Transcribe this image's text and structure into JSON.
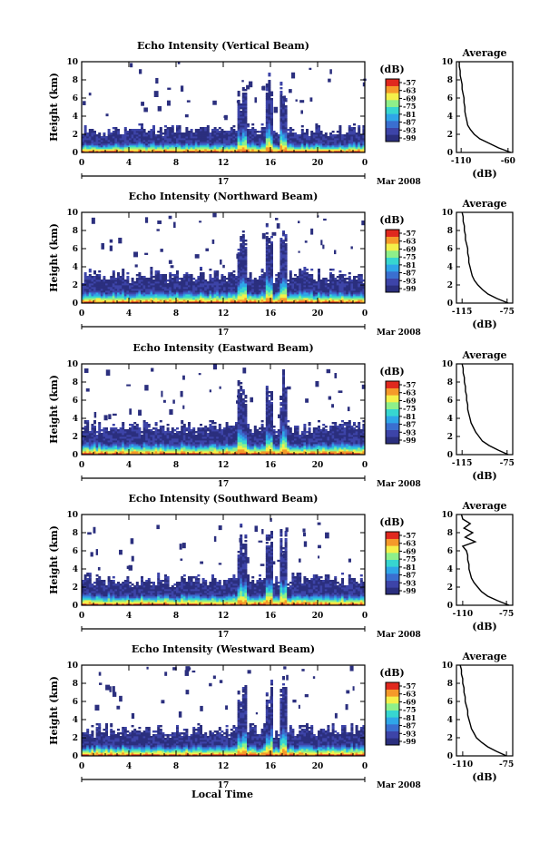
{
  "figure": {
    "xlabel": "Local Time",
    "date_day": "17",
    "date_month": "Mar 2008",
    "colorbar_unit": "(dB)",
    "colorbar_ticks": [
      "-57",
      "-63",
      "-69",
      "-75",
      "-81",
      "-87",
      "-93",
      "-99"
    ],
    "colorbar_colors": [
      "#2b2f7e",
      "#3d44a8",
      "#3a6fd0",
      "#2fa6e8",
      "#37d6d0",
      "#8ef08a",
      "#f4f04a",
      "#f59a2a",
      "#e0281e"
    ]
  },
  "chart_data": [
    {
      "type": "heatmap",
      "title": "Echo Intensity (Vertical Beam)",
      "ylabel": "Height (km)",
      "xlim": [
        0,
        24
      ],
      "ylim": [
        0,
        10
      ],
      "xticks": [
        "0",
        "4",
        "8",
        "12",
        "16",
        "20",
        "0"
      ],
      "yticks": [
        "0",
        "2",
        "4",
        "6",
        "8",
        "10"
      ],
      "echo_top_km": 2.6,
      "profile": {
        "title": "Average",
        "xlabel": "(dB)",
        "xlim": [
          -115,
          -55
        ],
        "xtick_values": [
          -110,
          -60
        ],
        "xticks": [
          "-110",
          "-60"
        ],
        "ylim": [
          0,
          10
        ],
        "yticks": [
          "0",
          "2",
          "4",
          "6",
          "8",
          "10"
        ],
        "heights": [
          0,
          0.5,
          1,
          1.5,
          2,
          2.5,
          3,
          3.5,
          4,
          4.5,
          5,
          5.5,
          6,
          6.5,
          7,
          7.5,
          8,
          8.5,
          9,
          9.5,
          10
        ],
        "values": [
          -57,
          -70,
          -80,
          -90,
          -96,
          -100,
          -103,
          -104,
          -105,
          -106,
          -106,
          -107,
          -107,
          -108,
          -109,
          -109,
          -110,
          -111,
          -111,
          -112,
          -112
        ]
      }
    },
    {
      "type": "heatmap",
      "title": "Echo Intensity (Northward Beam)",
      "ylabel": "Height (km)",
      "xlim": [
        0,
        24
      ],
      "ylim": [
        0,
        10
      ],
      "xticks": [
        "0",
        "4",
        "8",
        "12",
        "16",
        "20",
        "0"
      ],
      "yticks": [
        "0",
        "2",
        "4",
        "6",
        "8",
        "10"
      ],
      "echo_top_km": 3.2,
      "profile": {
        "title": "Average",
        "xlabel": "(dB)",
        "xlim": [
          -120,
          -70
        ],
        "xtick_values": [
          -115,
          -75
        ],
        "xticks": [
          "-115",
          "-75"
        ],
        "ylim": [
          0,
          10
        ],
        "yticks": [
          "0",
          "2",
          "4",
          "6",
          "8",
          "10"
        ],
        "heights": [
          0,
          0.5,
          1,
          1.5,
          2,
          2.5,
          3,
          3.5,
          4,
          4.5,
          5,
          5.5,
          6,
          6.5,
          7,
          7.5,
          8,
          8.5,
          9,
          9.5,
          10
        ],
        "values": [
          -74,
          -84,
          -92,
          -97,
          -101,
          -104,
          -106,
          -107,
          -108,
          -109,
          -109,
          -110,
          -110,
          -111,
          -112,
          -112,
          -113,
          -113,
          -114,
          -114,
          -115
        ]
      }
    },
    {
      "type": "heatmap",
      "title": "Echo Intensity (Eastward Beam)",
      "ylabel": "Height (km)",
      "xlim": [
        0,
        24
      ],
      "ylim": [
        0,
        10
      ],
      "xticks": [
        "0",
        "4",
        "8",
        "12",
        "16",
        "20",
        "0"
      ],
      "yticks": [
        "0",
        "2",
        "4",
        "6",
        "8",
        "10"
      ],
      "echo_top_km": 3.2,
      "profile": {
        "title": "Average",
        "xlabel": "(dB)",
        "xlim": [
          -120,
          -70
        ],
        "xtick_values": [
          -115,
          -75
        ],
        "xticks": [
          "-115",
          "-75"
        ],
        "ylim": [
          0,
          10
        ],
        "yticks": [
          "0",
          "2",
          "4",
          "6",
          "8",
          "10"
        ],
        "heights": [
          0,
          0.5,
          1,
          1.5,
          2,
          2.5,
          3,
          3.5,
          4,
          4.5,
          5,
          5.5,
          6,
          6.5,
          7,
          7.5,
          8,
          8.5,
          9,
          9.5,
          10
        ],
        "values": [
          -74,
          -83,
          -91,
          -97,
          -100,
          -103,
          -105,
          -107,
          -108,
          -109,
          -110,
          -110,
          -111,
          -111,
          -112,
          -112,
          -113,
          -113,
          -114,
          -114,
          -115
        ]
      }
    },
    {
      "type": "heatmap",
      "title": "Echo Intensity (Southward Beam)",
      "ylabel": "Height (km)",
      "xlim": [
        0,
        24
      ],
      "ylim": [
        0,
        10
      ],
      "xticks": [
        "0",
        "4",
        "8",
        "12",
        "16",
        "20",
        "0"
      ],
      "yticks": [
        "0",
        "2",
        "4",
        "6",
        "8",
        "10"
      ],
      "echo_top_km": 3.0,
      "profile": {
        "title": "Average",
        "xlabel": "(dB)",
        "xlim": [
          -115,
          -70
        ],
        "xtick_values": [
          -110,
          -75
        ],
        "xticks": [
          "-110",
          "-75"
        ],
        "ylim": [
          0,
          10
        ],
        "yticks": [
          "0",
          "2",
          "4",
          "6",
          "8",
          "10"
        ],
        "heights": [
          0,
          0.5,
          1,
          1.5,
          2,
          2.5,
          3,
          3.5,
          4,
          4.5,
          5,
          5.5,
          6,
          6.5,
          7,
          7.5,
          8,
          8.5,
          9,
          9.5,
          10
        ],
        "values": [
          -73,
          -82,
          -90,
          -95,
          -98,
          -101,
          -103,
          -104,
          -105,
          -105,
          -106,
          -106,
          -107,
          -110,
          -100,
          -108,
          -102,
          -109,
          -104,
          -110,
          -111
        ]
      }
    },
    {
      "type": "heatmap",
      "title": "Echo Intensity (Westward Beam)",
      "ylabel": "Height (km)",
      "xlim": [
        0,
        24
      ],
      "ylim": [
        0,
        10
      ],
      "xticks": [
        "0",
        "4",
        "8",
        "12",
        "16",
        "20",
        "0"
      ],
      "yticks": [
        "0",
        "2",
        "4",
        "6",
        "8",
        "10"
      ],
      "echo_top_km": 3.0,
      "profile": {
        "title": "Average",
        "xlabel": "(dB)",
        "xlim": [
          -115,
          -70
        ],
        "xtick_values": [
          -110,
          -75
        ],
        "xticks": [
          "-110",
          "-75"
        ],
        "ylim": [
          0,
          10
        ],
        "yticks": [
          "0",
          "2",
          "4",
          "6",
          "8",
          "10"
        ],
        "heights": [
          0,
          0.5,
          1,
          1.5,
          2,
          2.5,
          3,
          3.5,
          4,
          4.5,
          5,
          5.5,
          6,
          6.5,
          7,
          7.5,
          8,
          8.5,
          9,
          9.5,
          10
        ],
        "values": [
          -75,
          -83,
          -90,
          -95,
          -99,
          -101,
          -103,
          -104,
          -105,
          -106,
          -106,
          -107,
          -108,
          -108,
          -109,
          -109,
          -110,
          -110,
          -111,
          -111,
          -112
        ]
      }
    }
  ]
}
